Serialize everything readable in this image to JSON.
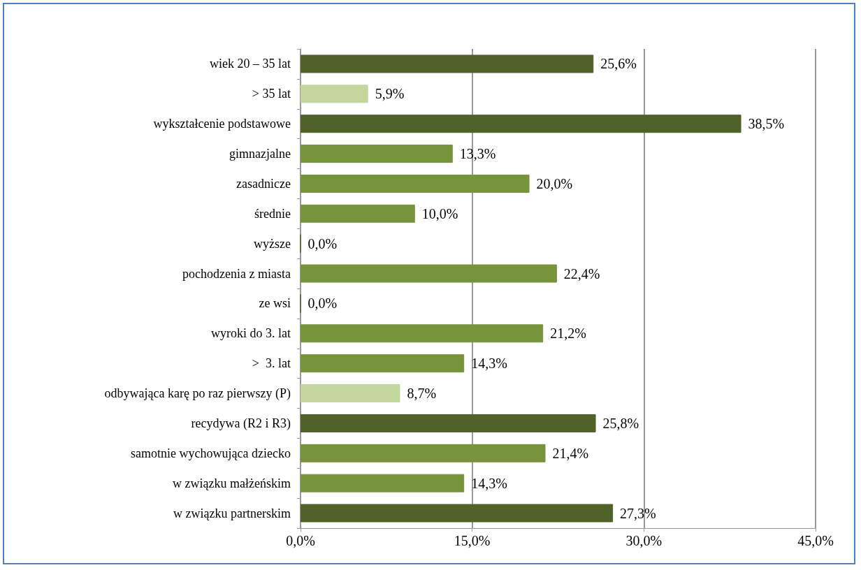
{
  "chart_data": {
    "type": "bar",
    "orientation": "horizontal",
    "categories": [
      "wiek 20 – 35 lat",
      "> 35 lat",
      "wykształcenie podstawowe",
      "gimnazjalne",
      "zasadnicze",
      "średnie",
      "wyższe",
      "pochodzenia z miasta",
      "ze wsi",
      "wyroki do 3. lat",
      ">  3. lat",
      "odbywająca karę po raz pierwszy (P)",
      "recydywa (R2 i R3)",
      "samotnie wychowująca dziecko",
      "w związku małżeńskim",
      "w związku partnerskim"
    ],
    "values": [
      25.6,
      5.9,
      38.5,
      13.3,
      20.0,
      10.0,
      0.0,
      22.4,
      0.0,
      21.2,
      14.3,
      8.7,
      25.8,
      21.4,
      14.3,
      27.3
    ],
    "colors": [
      "#4f6228",
      "#c3d69b",
      "#4f6228",
      "#77933c",
      "#77933c",
      "#77933c",
      "#4f6228",
      "#77933c",
      "#4f6228",
      "#77933c",
      "#77933c",
      "#c3d69b",
      "#4f6228",
      "#77933c",
      "#77933c",
      "#4f6228"
    ],
    "value_labels": [
      "25,6%",
      "5,9%",
      "38,5%",
      "13,3%",
      "20,0%",
      "10,0%",
      "0,0%",
      "22,4%",
      "0,0%",
      "21,2%",
      "14,3%",
      "8,7%",
      "25,8%",
      "21,4%",
      "14,3%",
      "27,3%"
    ],
    "xlim": [
      0,
      45
    ],
    "xticks": [
      {
        "value": 0,
        "label": "0,0%"
      },
      {
        "value": 15,
        "label": "15,0%"
      },
      {
        "value": 30,
        "label": "30,0%"
      },
      {
        "value": 45,
        "label": "45,0%"
      }
    ],
    "grid": "x"
  }
}
